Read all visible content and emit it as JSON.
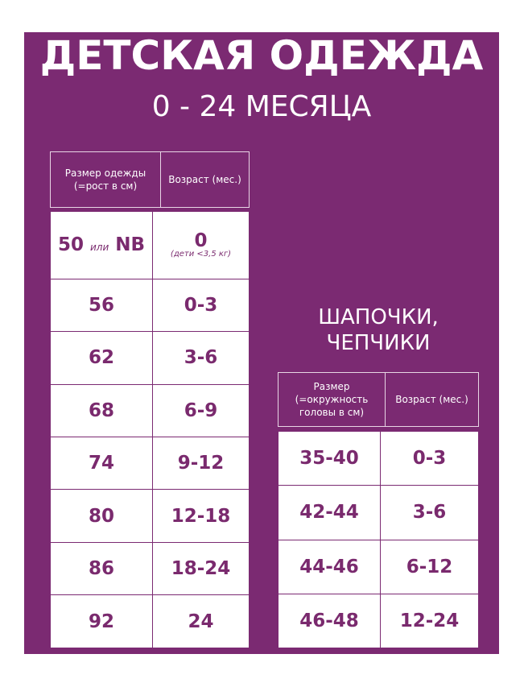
{
  "title": "ДЕТСКАЯ ОДЕЖДА",
  "subtitle": "0 - 24 МЕСЯЦА",
  "clothing": {
    "headers": [
      "Размер одежды (=рост в см)",
      "Возраст (мес.)"
    ],
    "first_row": {
      "size": "50",
      "or": "или",
      "size_alt": "NB",
      "age": "0",
      "note": "(дети <3,5 кг)"
    },
    "rows": [
      [
        "56",
        "0-3"
      ],
      [
        "62",
        "3-6"
      ],
      [
        "68",
        "6-9"
      ],
      [
        "74",
        "9-12"
      ],
      [
        "80",
        "12-18"
      ],
      [
        "86",
        "18-24"
      ],
      [
        "92",
        "24"
      ]
    ]
  },
  "hats": {
    "title": "ШАПОЧКИ, ЧЕПЧИКИ",
    "headers": [
      "Размер (=окружность головы в см)",
      "Возраст (мес.)"
    ],
    "rows": [
      [
        "35-40",
        "0-3"
      ],
      [
        "42-44",
        "3-6"
      ],
      [
        "44-46",
        "6-12"
      ],
      [
        "46-48",
        "12-24"
      ]
    ]
  },
  "colors": {
    "purple": "#7b2a72",
    "text": "#7a2a6e"
  }
}
